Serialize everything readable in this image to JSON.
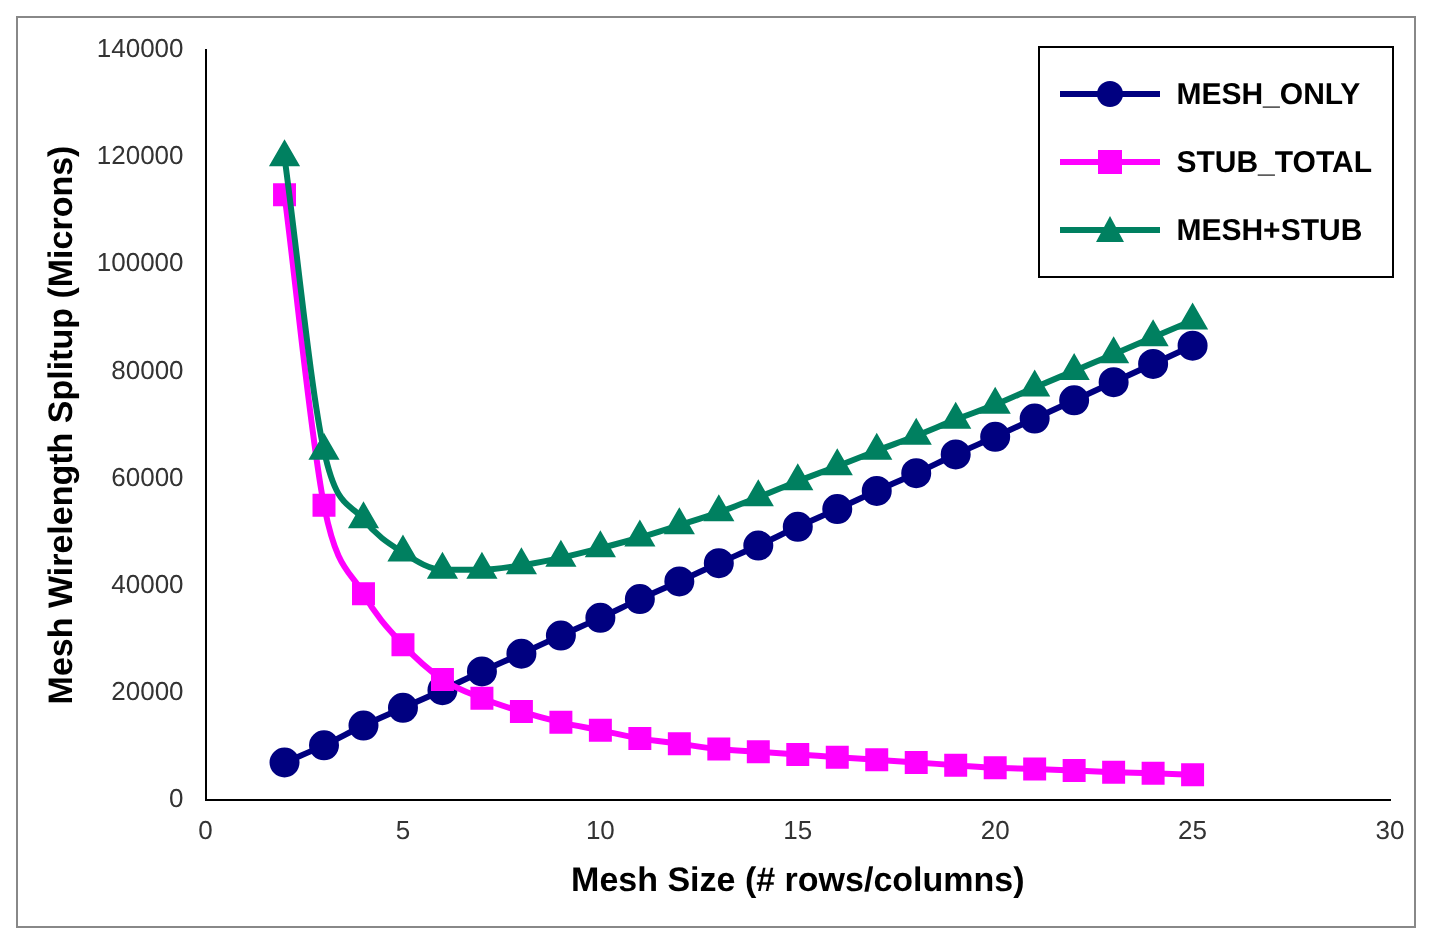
{
  "chart_data": {
    "type": "line",
    "xlabel": "Mesh Size (# rows/columns)",
    "ylabel": "Mesh Wirelength Splitup (Microns)",
    "x": [
      2,
      3,
      4,
      5,
      6,
      7,
      8,
      9,
      10,
      11,
      12,
      13,
      14,
      15,
      16,
      17,
      18,
      19,
      20,
      21,
      22,
      23,
      24,
      25
    ],
    "series": [
      {
        "name": "MESH_ONLY",
        "color": "#000080",
        "marker": "circle",
        "values": [
          7000,
          10200,
          13900,
          17200,
          20500,
          24000,
          27300,
          30700,
          34000,
          37500,
          40800,
          44200,
          47500,
          51000,
          54300,
          57700,
          61000,
          64500,
          67800,
          71200,
          74600,
          78000,
          81400,
          84800
        ]
      },
      {
        "name": "STUB_TOTAL",
        "color": "#ff00ff",
        "marker": "square",
        "values": [
          113000,
          55000,
          38500,
          29000,
          22500,
          19000,
          16500,
          14500,
          13000,
          11500,
          10500,
          9500,
          9000,
          8500,
          8000,
          7500,
          7000,
          6500,
          6000,
          5800,
          5500,
          5200,
          5000,
          4700
        ]
      },
      {
        "name": "MESH+STUB",
        "color": "#008060",
        "marker": "triangle",
        "values": [
          120000,
          65200,
          52400,
          46200,
          43000,
          43000,
          43800,
          45200,
          47000,
          49000,
          51300,
          53700,
          56500,
          59500,
          62300,
          65200,
          68000,
          71000,
          73800,
          77000,
          80100,
          83200,
          86400,
          89500
        ]
      }
    ],
    "xlim": [
      0,
      30
    ],
    "xticks": [
      0,
      5,
      10,
      15,
      20,
      25,
      30
    ],
    "ylim": [
      0,
      140000
    ],
    "yticks": [
      0,
      20000,
      40000,
      60000,
      80000,
      100000,
      120000,
      140000
    ],
    "grid": false,
    "legend": "top right"
  }
}
